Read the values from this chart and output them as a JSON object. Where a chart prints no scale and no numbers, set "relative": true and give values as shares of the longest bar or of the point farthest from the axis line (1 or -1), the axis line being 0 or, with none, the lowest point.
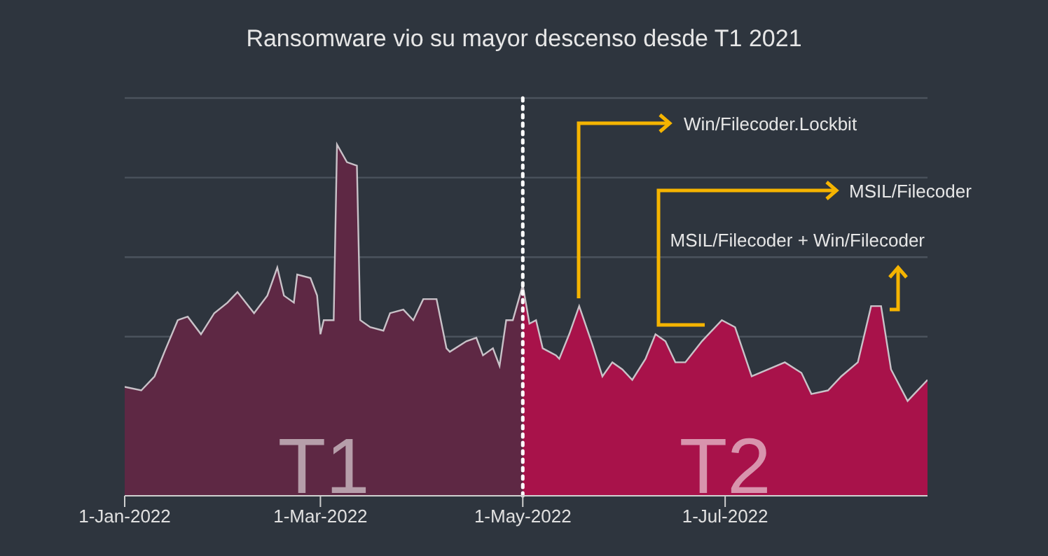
{
  "chart_data": {
    "type": "area",
    "title": "Ransomware vio su mayor descenso desde T1 2021",
    "relative": true,
    "grid": "y",
    "xlim": [
      "2022-01-01",
      "2022-08-31"
    ],
    "xticks": [
      {
        "value": "2022-01-01",
        "label": "1-Jan-2022"
      },
      {
        "value": "2022-03-01",
        "label": "1-Mar-2022"
      },
      {
        "value": "2022-05-01",
        "label": "1-May-2022"
      },
      {
        "value": "2022-07-01",
        "label": "1-Jul-2022"
      }
    ],
    "series": [
      {
        "name": "T1",
        "color": "#5e2844",
        "x": [
          "2022-01-01",
          "2022-01-06",
          "2022-01-10",
          "2022-01-13",
          "2022-01-17",
          "2022-01-20",
          "2022-01-24",
          "2022-01-28",
          "2022-02-01",
          "2022-02-04",
          "2022-02-09",
          "2022-02-13",
          "2022-02-16",
          "2022-02-18",
          "2022-02-21",
          "2022-02-22",
          "2022-02-26",
          "2022-02-28",
          "2022-03-01",
          "2022-03-02",
          "2022-03-05",
          "2022-03-06",
          "2022-03-09",
          "2022-03-12",
          "2022-03-13",
          "2022-03-16",
          "2022-03-20",
          "2022-03-22",
          "2022-03-26",
          "2022-03-29",
          "2022-04-01",
          "2022-04-05",
          "2022-04-08",
          "2022-04-09",
          "2022-04-14",
          "2022-04-17",
          "2022-04-19",
          "2022-04-22",
          "2022-04-24",
          "2022-04-26",
          "2022-04-28",
          "2022-05-01"
        ],
        "values": [
          0.31,
          0.3,
          0.34,
          0.41,
          0.5,
          0.51,
          0.46,
          0.52,
          0.55,
          0.58,
          0.52,
          0.57,
          0.65,
          0.57,
          0.55,
          0.63,
          0.62,
          0.57,
          0.46,
          0.5,
          0.5,
          1.0,
          0.95,
          0.94,
          0.5,
          0.48,
          0.47,
          0.52,
          0.53,
          0.5,
          0.56,
          0.56,
          0.42,
          0.41,
          0.44,
          0.45,
          0.4,
          0.42,
          0.37,
          0.5,
          0.5,
          0.6
        ]
      },
      {
        "name": "T2",
        "color": "#a8124a",
        "x": [
          "2022-05-01",
          "2022-05-03",
          "2022-05-05",
          "2022-05-07",
          "2022-05-11",
          "2022-05-12",
          "2022-05-15",
          "2022-05-18",
          "2022-05-22",
          "2022-05-25",
          "2022-05-28",
          "2022-05-31",
          "2022-06-03",
          "2022-06-07",
          "2022-06-10",
          "2022-06-13",
          "2022-06-16",
          "2022-06-19",
          "2022-06-24",
          "2022-06-30",
          "2022-07-04",
          "2022-07-09",
          "2022-07-14",
          "2022-07-19",
          "2022-07-24",
          "2022-07-27",
          "2022-08-01",
          "2022-08-05",
          "2022-08-10",
          "2022-08-14",
          "2022-08-17",
          "2022-08-20",
          "2022-08-25",
          "2022-08-31"
        ],
        "values": [
          0.6,
          0.49,
          0.5,
          0.42,
          0.4,
          0.39,
          0.46,
          0.54,
          0.43,
          0.34,
          0.38,
          0.36,
          0.33,
          0.39,
          0.46,
          0.44,
          0.38,
          0.38,
          0.44,
          0.5,
          0.48,
          0.34,
          0.36,
          0.38,
          0.35,
          0.29,
          0.3,
          0.34,
          0.38,
          0.54,
          0.54,
          0.36,
          0.27,
          0.33
        ]
      }
    ],
    "ref_lines": [
      {
        "axis": "x",
        "value": "2022-05-01",
        "color": "#ffffff",
        "line_style": "dotted"
      }
    ],
    "annotations": [
      "Win/Filecoder.Lockbit",
      "MSIL/Filecoder",
      "MSIL/Filecoder + Win/Filecoder"
    ]
  }
}
